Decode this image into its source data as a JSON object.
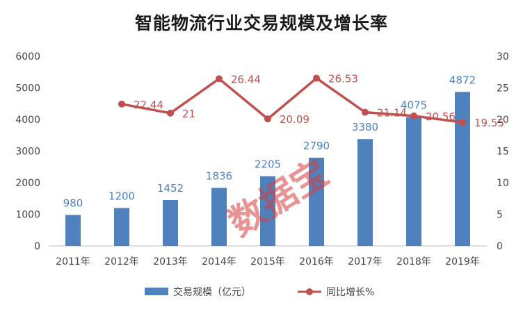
{
  "chart_data": {
    "type": "bar+line",
    "title": "智能物流行业交易规模及增长率",
    "categories": [
      "2011年",
      "2012年",
      "2013年",
      "2014年",
      "2015年",
      "2016年",
      "2017年",
      "2018年",
      "2019年"
    ],
    "series": [
      {
        "name": "交易规模（亿元）",
        "type": "bar",
        "axis": "left",
        "color": "#4f81bd",
        "values": [
          980,
          1200,
          1452,
          1836,
          2205,
          2790,
          3380,
          4075,
          4872
        ],
        "labels": [
          "980",
          "1200",
          "1452",
          "1836",
          "2205",
          "2790",
          "3380",
          "4075",
          "4872"
        ]
      },
      {
        "name": "同比增长%",
        "type": "line",
        "axis": "right",
        "color": "#c0504d",
        "values": [
          null,
          22.44,
          21,
          26.44,
          20.09,
          26.53,
          21.14,
          20.56,
          19.55
        ],
        "labels": [
          "",
          "22.44",
          "21",
          "26.44",
          "20.09",
          "26.53",
          "21.14",
          "20.56",
          "19.55"
        ]
      }
    ],
    "y_left": {
      "min": 0,
      "max": 6000,
      "ticks": [
        "0",
        "1000",
        "2000",
        "3000",
        "4000",
        "5000",
        "6000"
      ]
    },
    "y_right": {
      "min": 0,
      "max": 30,
      "ticks": [
        "0",
        "5",
        "10",
        "15",
        "20",
        "25",
        "30"
      ]
    },
    "grid": false,
    "legend": "bottom",
    "watermark": "数据宝"
  }
}
